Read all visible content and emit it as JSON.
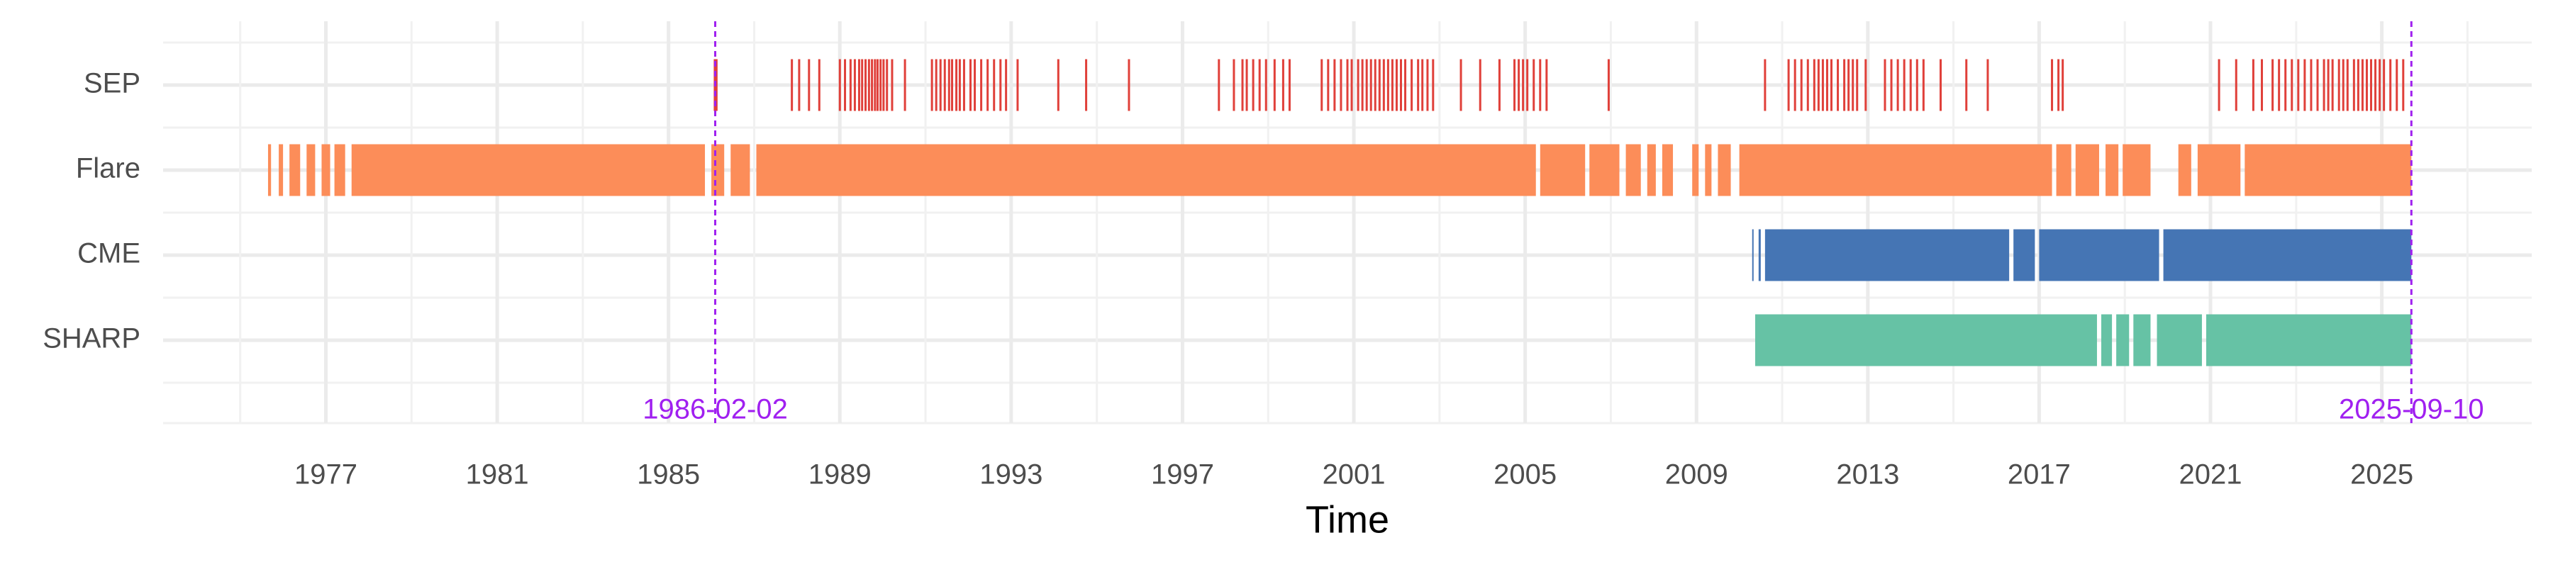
{
  "chart_data": {
    "type": "timeline",
    "x_label": "Time",
    "xlim": [
      1973.2,
      2028.5
    ],
    "xticks": [
      1977,
      1981,
      1985,
      1989,
      1993,
      1997,
      2001,
      2005,
      2009,
      2013,
      2017,
      2021,
      2025
    ],
    "grid": true,
    "vlines": [
      {
        "value": 1986.09,
        "label": "1986-02-02"
      },
      {
        "value": 2025.69,
        "label": "2025-09-10"
      }
    ],
    "vline_color": "#a020f0",
    "series": [
      {
        "name": "SEP",
        "color": "#e0403a",
        "events": [
          1986.08,
          1986.12,
          1987.88,
          1988.05,
          1988.28,
          1988.52,
          1989.0,
          1989.12,
          1989.25,
          1989.35,
          1989.45,
          1989.52,
          1989.6,
          1989.68,
          1989.75,
          1989.82,
          1989.88,
          1989.95,
          1990.02,
          1990.1,
          1990.22,
          1990.52,
          1991.15,
          1991.25,
          1991.35,
          1991.45,
          1991.55,
          1991.62,
          1991.72,
          1991.8,
          1991.9,
          1992.05,
          1992.15,
          1992.3,
          1992.45,
          1992.6,
          1992.75,
          1992.88,
          1993.15,
          1994.1,
          1994.75,
          1995.75,
          1997.85,
          1998.2,
          1998.4,
          1998.5,
          1998.65,
          1998.8,
          1998.95,
          1999.15,
          1999.35,
          1999.5,
          2000.25,
          2000.4,
          2000.55,
          2000.7,
          2000.85,
          2000.95,
          2001.1,
          2001.2,
          2001.3,
          2001.4,
          2001.5,
          2001.6,
          2001.7,
          2001.8,
          2001.9,
          2002.0,
          2002.1,
          2002.2,
          2002.35,
          2002.5,
          2002.6,
          2002.72,
          2002.85,
          2003.5,
          2003.95,
          2004.4,
          2004.75,
          2004.85,
          2004.95,
          2005.05,
          2005.2,
          2005.35,
          2005.5,
          2006.95,
          2010.6,
          2011.15,
          2011.3,
          2011.45,
          2011.6,
          2011.75,
          2011.85,
          2011.95,
          2012.05,
          2012.15,
          2012.3,
          2012.45,
          2012.55,
          2012.65,
          2012.75,
          2012.95,
          2013.4,
          2013.55,
          2013.7,
          2013.85,
          2014.0,
          2014.15,
          2014.3,
          2014.7,
          2015.3,
          2015.8,
          2017.3,
          2017.45,
          2017.55,
          2021.2,
          2021.6,
          2022.0,
          2022.2,
          2022.45,
          2022.6,
          2022.75,
          2022.9,
          2023.05,
          2023.2,
          2023.35,
          2023.5,
          2023.65,
          2023.75,
          2023.85,
          2024.0,
          2024.1,
          2024.2,
          2024.35,
          2024.45,
          2024.55,
          2024.65,
          2024.75,
          2024.85,
          2024.95,
          2025.05,
          2025.2,
          2025.35,
          2025.5
        ],
        "spans": []
      },
      {
        "name": "Flare",
        "color": "#fc8d59",
        "events": [],
        "spans": [
          [
            1975.65,
            1975.72
          ],
          [
            1975.9,
            1976.0
          ],
          [
            1976.15,
            1976.4
          ],
          [
            1976.55,
            1976.75
          ],
          [
            1976.9,
            1977.1
          ],
          [
            1977.2,
            1977.45
          ],
          [
            1977.6,
            1985.85
          ],
          [
            1986.0,
            1986.3
          ],
          [
            1986.45,
            1986.9
          ],
          [
            1987.05,
            2005.25
          ],
          [
            2005.35,
            2006.4
          ],
          [
            2006.5,
            2007.2
          ],
          [
            2007.35,
            2007.7
          ],
          [
            2007.85,
            2008.05
          ],
          [
            2008.2,
            2008.45
          ],
          [
            2008.9,
            2009.05
          ],
          [
            2009.2,
            2009.35
          ],
          [
            2009.5,
            2009.8
          ],
          [
            2010.0,
            2017.3
          ],
          [
            2017.4,
            2017.75
          ],
          [
            2017.85,
            2018.4
          ],
          [
            2018.55,
            2018.85
          ],
          [
            2018.95,
            2019.6
          ],
          [
            2020.25,
            2020.55
          ],
          [
            2020.7,
            2021.7
          ],
          [
            2021.8,
            2025.69
          ]
        ]
      },
      {
        "name": "CME",
        "color": "#4575b4",
        "events": [],
        "spans": [
          [
            2010.3,
            2010.33
          ],
          [
            2010.45,
            2010.5
          ],
          [
            2010.6,
            2016.3
          ],
          [
            2016.4,
            2016.9
          ],
          [
            2017.0,
            2019.8
          ],
          [
            2019.9,
            2025.69
          ]
        ]
      },
      {
        "name": "SHARP",
        "color": "#66c2a5",
        "events": [],
        "spans": [
          [
            2010.37,
            2018.35
          ],
          [
            2018.45,
            2018.7
          ],
          [
            2018.8,
            2019.1
          ],
          [
            2019.2,
            2019.6
          ],
          [
            2019.75,
            2020.8
          ],
          [
            2020.9,
            2025.69
          ]
        ]
      }
    ]
  }
}
